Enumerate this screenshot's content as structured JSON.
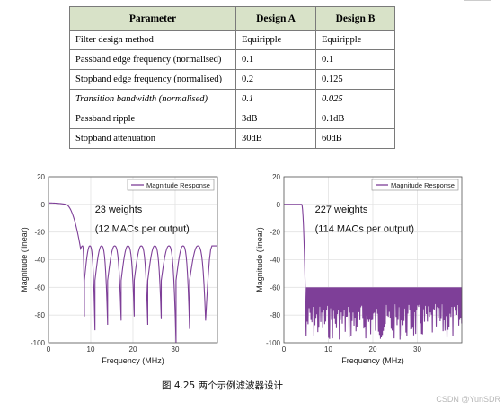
{
  "table": {
    "headers": [
      "Parameter",
      "Design A",
      "Design B"
    ],
    "rows": [
      [
        "Filter design method",
        "Equiripple",
        "Equiripple"
      ],
      [
        "Passband edge frequency (normalised)",
        "0.1",
        "0.1"
      ],
      [
        "Stopband edge frequency (normalised)",
        "0.2",
        "0.125"
      ],
      [
        "Transition bandwidth (normalised)",
        "0.1",
        "0.025"
      ],
      [
        "Passband ripple",
        "3dB",
        "0.1dB"
      ],
      [
        "Stopband attenuation",
        "30dB",
        "60dB"
      ]
    ],
    "italic_row_index": 3
  },
  "chart_data": [
    {
      "type": "line",
      "xlabel": "Frequency (MHz)",
      "ylabel": "Magnitude (linear)",
      "xlim": [
        0,
        40
      ],
      "ylim": [
        -100,
        20
      ],
      "xticks": [
        0,
        10,
        20,
        30
      ],
      "yticks": [
        20,
        0,
        -20,
        -40,
        -60,
        -80,
        -100
      ],
      "series": [
        {
          "name": "Magnitude Response",
          "color": "#7e3f98"
        }
      ],
      "passband_edge_mhz": 4,
      "stopband_edge_mhz": 8,
      "stopband_ripple_db": -30,
      "null_frequencies_mhz": [
        8.5,
        11,
        14,
        17.2,
        20.3,
        23.5,
        26.7,
        30.2,
        33.4,
        37.2
      ],
      "null_depths_db": [
        -81,
        -91,
        -87,
        -84,
        -81,
        -87,
        -83,
        -101,
        -90,
        -84
      ],
      "legend_position": "top-right",
      "annotation": [
        "23 weights",
        "(12 MACs per output)"
      ]
    },
    {
      "type": "line",
      "xlabel": "Frequency (MHz)",
      "ylabel": "Magnitude (linear)",
      "xlim": [
        0,
        40
      ],
      "ylim": [
        -100,
        20
      ],
      "xticks": [
        0,
        10,
        20,
        30
      ],
      "yticks": [
        20,
        0,
        -20,
        -40,
        -60,
        -80,
        -100
      ],
      "series": [
        {
          "name": "Magnitude Response",
          "color": "#7e3f98"
        }
      ],
      "passband_edge_mhz": 4,
      "stopband_edge_mhz": 5,
      "stopband_ripple_db": -60,
      "legend_position": "top-right",
      "annotation": [
        "227 weights",
        "(114 MACs per output)"
      ]
    }
  ],
  "caption": "图  4.25  两个示例滤波器设计",
  "watermark": "CSDN @YunSDR"
}
